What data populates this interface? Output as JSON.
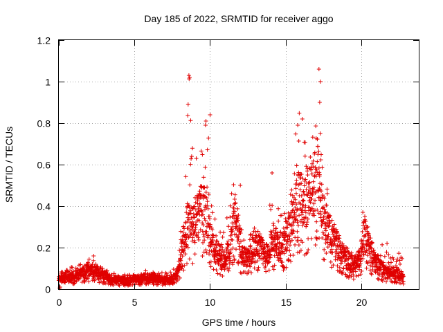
{
  "chart_data": {
    "type": "scatter",
    "title": "Day 185 of 2022, SRMTID for receiver aggo",
    "xlabel": "GPS time / hours",
    "ylabel": "SRMTID / TECUs",
    "xlim": [
      0,
      23.8
    ],
    "ylim": [
      0,
      1.2
    ],
    "x_ticks": [
      0,
      5,
      10,
      15,
      20
    ],
    "x_tick_labels": [
      "0",
      "5",
      "10",
      "15",
      "20"
    ],
    "y_ticks": [
      0,
      0.2,
      0.4,
      0.6,
      0.8,
      1,
      1.2
    ],
    "y_tick_labels": [
      "0",
      "0.2",
      "0.4",
      "0.6",
      "0.8",
      "1",
      "1.2"
    ],
    "grid": true,
    "marker": "plus",
    "color": "#e00000",
    "envelope": {
      "description": "approximate data envelope (hours, typical, upper)",
      "x": [
        0.0,
        0.5,
        1.0,
        1.5,
        2.0,
        2.3,
        2.6,
        3.0,
        3.5,
        4.0,
        4.5,
        5.0,
        5.5,
        6.0,
        6.5,
        7.0,
        7.5,
        7.8,
        8.0,
        8.3,
        8.6,
        8.9,
        9.2,
        9.5,
        9.8,
        10.1,
        10.4,
        10.7,
        11.0,
        11.3,
        11.6,
        11.8,
        12.0,
        12.3,
        12.6,
        12.9,
        13.2,
        13.5,
        13.8,
        14.1,
        14.4,
        14.7,
        15.0,
        15.3,
        15.6,
        15.9,
        16.2,
        16.5,
        16.8,
        17.1,
        17.3,
        17.5,
        17.8,
        18.1,
        18.4,
        18.7,
        19.0,
        19.3,
        19.6,
        19.9,
        20.2,
        20.5,
        20.8,
        21.1,
        21.4,
        21.7,
        22.0,
        22.3,
        22.6,
        22.8
      ],
      "typical": [
        0.05,
        0.06,
        0.06,
        0.08,
        0.09,
        0.1,
        0.08,
        0.07,
        0.05,
        0.04,
        0.04,
        0.05,
        0.05,
        0.06,
        0.05,
        0.04,
        0.05,
        0.07,
        0.12,
        0.25,
        0.35,
        0.3,
        0.35,
        0.4,
        0.35,
        0.25,
        0.2,
        0.15,
        0.14,
        0.2,
        0.35,
        0.35,
        0.2,
        0.15,
        0.15,
        0.2,
        0.22,
        0.18,
        0.16,
        0.25,
        0.22,
        0.2,
        0.25,
        0.3,
        0.4,
        0.45,
        0.4,
        0.45,
        0.5,
        0.55,
        0.45,
        0.35,
        0.3,
        0.25,
        0.22,
        0.18,
        0.15,
        0.12,
        0.12,
        0.14,
        0.28,
        0.22,
        0.15,
        0.12,
        0.1,
        0.08,
        0.08,
        0.08,
        0.06,
        0.06
      ],
      "upper": [
        0.08,
        0.1,
        0.11,
        0.14,
        0.15,
        0.16,
        0.12,
        0.1,
        0.08,
        0.07,
        0.07,
        0.08,
        0.09,
        0.09,
        0.08,
        0.08,
        0.09,
        0.12,
        0.2,
        0.6,
        1.04,
        0.7,
        0.62,
        0.8,
        0.85,
        0.55,
        0.3,
        0.28,
        0.3,
        0.45,
        0.52,
        0.5,
        0.4,
        0.25,
        0.28,
        0.3,
        0.32,
        0.3,
        0.35,
        0.55,
        0.45,
        0.38,
        0.4,
        0.5,
        0.75,
        0.85,
        0.75,
        0.7,
        0.8,
        1.06,
        0.8,
        0.6,
        0.55,
        0.45,
        0.35,
        0.3,
        0.25,
        0.2,
        0.22,
        0.25,
        0.37,
        0.3,
        0.25,
        0.2,
        0.22,
        0.18,
        0.16,
        0.15,
        0.2,
        0.14
      ]
    },
    "highlights": [
      {
        "x": 8.6,
        "y": 1.03
      },
      {
        "x": 8.65,
        "y": 1.02
      },
      {
        "x": 8.55,
        "y": 0.89
      },
      {
        "x": 17.2,
        "y": 1.06
      },
      {
        "x": 17.3,
        "y": 1.0
      },
      {
        "x": 17.25,
        "y": 0.9
      },
      {
        "x": 10.0,
        "y": 0.84
      },
      {
        "x": 9.7,
        "y": 0.79
      },
      {
        "x": 16.1,
        "y": 0.82
      },
      {
        "x": 15.8,
        "y": 0.79
      },
      {
        "x": 12.0,
        "y": 0.5
      },
      {
        "x": 14.1,
        "y": 0.56
      },
      {
        "x": 20.1,
        "y": 0.37
      },
      {
        "x": 21.7,
        "y": 0.22
      },
      {
        "x": 2.3,
        "y": 0.16
      }
    ]
  }
}
